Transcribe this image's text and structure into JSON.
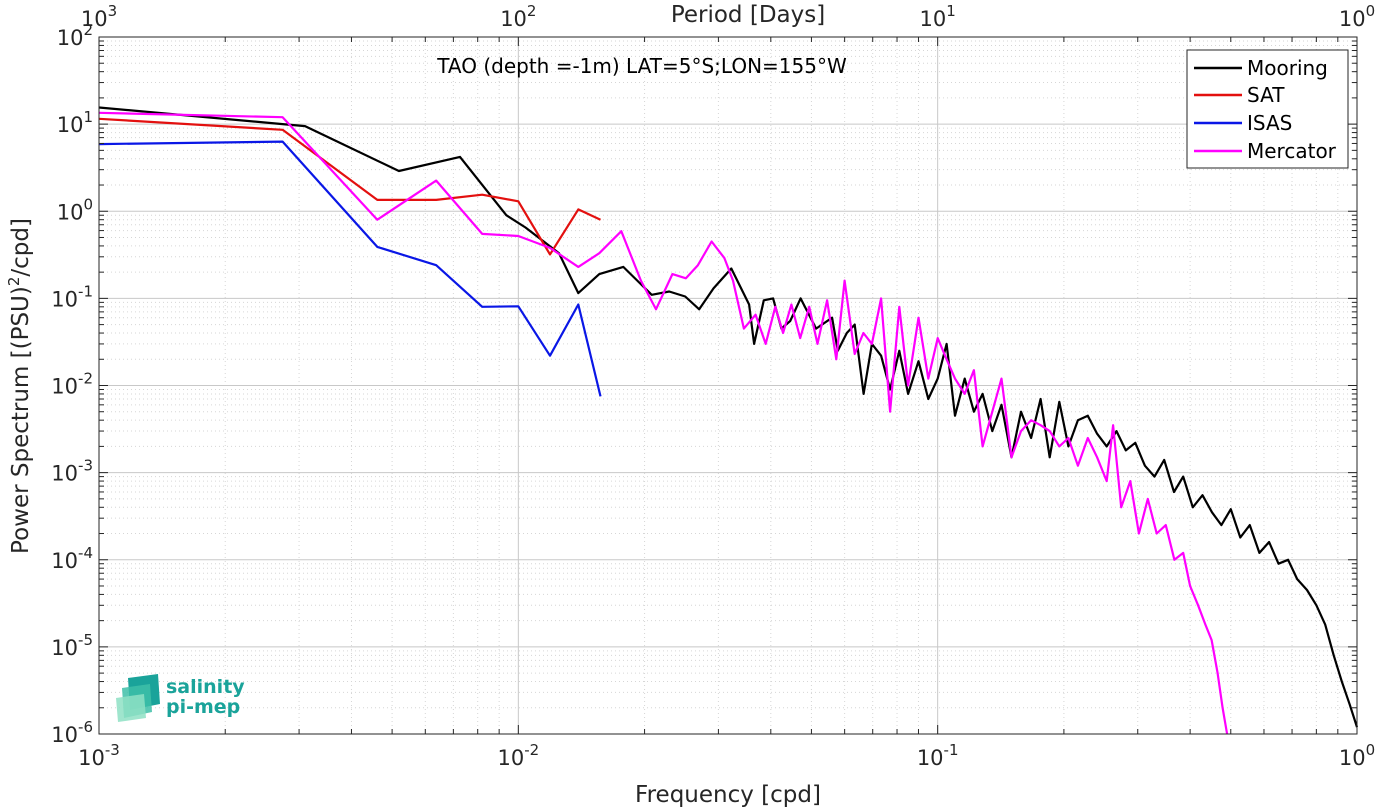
{
  "chart_data": {
    "type": "line",
    "title": "TAO (depth =-1m) LAT=5°S;LON=155°W",
    "xlabel": "Frequency [cpd]",
    "ylabel": "Power Spectrum [(PSU)²/cpd]",
    "ylabel_parts": {
      "pre": "Power Spectrum [(PSU)",
      "sup": "2",
      "post": "/cpd]"
    },
    "top_xlabel": "Period [Days]",
    "xscale": "log",
    "yscale": "log",
    "xlim": [
      0.001,
      1
    ],
    "ylim": [
      1e-06,
      100
    ],
    "grid": true,
    "legend_position": "top-right",
    "x_ticks": [
      {
        "value": 0.001,
        "base": "10",
        "exp": "-3"
      },
      {
        "value": 0.01,
        "base": "10",
        "exp": "-2"
      },
      {
        "value": 0.1,
        "base": "10",
        "exp": "-1"
      },
      {
        "value": 1,
        "base": "10",
        "exp": "0"
      }
    ],
    "top_ticks": [
      {
        "freq": 0.001,
        "base": "10",
        "exp": "3"
      },
      {
        "freq": 0.01,
        "base": "10",
        "exp": "2"
      },
      {
        "freq": 0.1,
        "base": "10",
        "exp": "1"
      },
      {
        "freq": 1,
        "base": "10",
        "exp": "0"
      }
    ],
    "y_ticks": [
      {
        "value": 100,
        "base": "10",
        "exp": "2"
      },
      {
        "value": 10,
        "base": "10",
        "exp": "1"
      },
      {
        "value": 1,
        "base": "10",
        "exp": "0"
      },
      {
        "value": 0.1,
        "base": "10",
        "exp": "-1"
      },
      {
        "value": 0.01,
        "base": "10",
        "exp": "-2"
      },
      {
        "value": 0.001,
        "base": "10",
        "exp": "-3"
      },
      {
        "value": 0.0001,
        "base": "10",
        "exp": "-4"
      },
      {
        "value": 1e-05,
        "base": "10",
        "exp": "-5"
      },
      {
        "value": 1e-06,
        "base": "10",
        "exp": "-6"
      }
    ],
    "series": [
      {
        "name": "Mooring",
        "color": "#000000",
        "x": [
          0.001,
          0.00274,
          0.0031,
          0.00519,
          0.00726,
          0.00936,
          0.0104,
          0.0125,
          0.0139,
          0.0156,
          0.0178,
          0.0208,
          0.0229,
          0.025,
          0.027,
          0.0292,
          0.0322,
          0.0355,
          0.0365,
          0.0385,
          0.0405,
          0.0424,
          0.0445,
          0.0471,
          0.0513,
          0.056,
          0.0578,
          0.0607,
          0.0634,
          0.0666,
          0.0697,
          0.0733,
          0.077,
          0.081,
          0.085,
          0.09,
          0.095,
          0.1,
          0.105,
          0.11,
          0.116,
          0.122,
          0.128,
          0.135,
          0.142,
          0.15,
          0.158,
          0.167,
          0.176,
          0.185,
          0.195,
          0.205,
          0.216,
          0.228,
          0.24,
          0.253,
          0.267,
          0.281,
          0.296,
          0.312,
          0.329,
          0.347,
          0.366,
          0.385,
          0.406,
          0.428,
          0.451,
          0.475,
          0.5,
          0.527,
          0.555,
          0.585,
          0.617,
          0.65,
          0.685,
          0.72,
          0.76,
          0.8,
          0.84,
          0.88,
          0.92,
          0.96,
          1.0
        ],
        "y": [
          15.5,
          10.0,
          9.5,
          2.9,
          4.2,
          0.9,
          0.65,
          0.33,
          0.115,
          0.19,
          0.23,
          0.11,
          0.12,
          0.105,
          0.075,
          0.13,
          0.22,
          0.085,
          0.03,
          0.095,
          0.1,
          0.045,
          0.055,
          0.1,
          0.045,
          0.06,
          0.025,
          0.04,
          0.05,
          0.008,
          0.03,
          0.022,
          0.009,
          0.025,
          0.008,
          0.019,
          0.007,
          0.012,
          0.03,
          0.0045,
          0.012,
          0.005,
          0.008,
          0.003,
          0.006,
          0.0015,
          0.005,
          0.0025,
          0.007,
          0.0015,
          0.0065,
          0.002,
          0.004,
          0.0045,
          0.0028,
          0.002,
          0.003,
          0.0018,
          0.0022,
          0.0012,
          0.0009,
          0.0014,
          0.0006,
          0.0009,
          0.0004,
          0.00055,
          0.00035,
          0.00025,
          0.00038,
          0.00018,
          0.00025,
          0.00012,
          0.00016,
          9e-05,
          0.0001,
          6e-05,
          4.5e-05,
          3e-05,
          1.8e-05,
          8e-06,
          4e-06,
          2.2e-06,
          1.2e-06
        ]
      },
      {
        "name": "SAT",
        "color": "#e3100f",
        "x": [
          0.001,
          0.00274,
          0.00461,
          0.00637,
          0.0082,
          0.01,
          0.0119,
          0.0139,
          0.0157
        ],
        "y": [
          11.5,
          8.6,
          1.35,
          1.35,
          1.55,
          1.3,
          0.32,
          1.05,
          0.8
        ]
      },
      {
        "name": "ISAS",
        "color": "#0a17e6",
        "x": [
          0.001,
          0.00274,
          0.00461,
          0.00637,
          0.0082,
          0.01,
          0.0119,
          0.0139,
          0.0157
        ],
        "y": [
          5.9,
          6.3,
          0.39,
          0.24,
          0.08,
          0.081,
          0.022,
          0.085,
          0.0075
        ]
      },
      {
        "name": "Mercator",
        "color": "#ff00ff",
        "x": [
          0.001,
          0.00274,
          0.00461,
          0.00637,
          0.0082,
          0.01,
          0.0119,
          0.0139,
          0.0156,
          0.0176,
          0.0196,
          0.0213,
          0.0233,
          0.0251,
          0.0268,
          0.0289,
          0.031,
          0.0325,
          0.0345,
          0.0368,
          0.0389,
          0.041,
          0.0428,
          0.0448,
          0.047,
          0.0494,
          0.0517,
          0.0545,
          0.0573,
          0.06,
          0.0634,
          0.0665,
          0.0697,
          0.0733,
          0.077,
          0.081,
          0.085,
          0.09,
          0.095,
          0.1,
          0.105,
          0.11,
          0.116,
          0.122,
          0.128,
          0.135,
          0.142,
          0.15,
          0.158,
          0.167,
          0.176,
          0.185,
          0.195,
          0.205,
          0.216,
          0.228,
          0.24,
          0.253,
          0.262,
          0.274,
          0.288,
          0.302,
          0.317,
          0.333,
          0.35,
          0.367,
          0.385,
          0.4,
          0.418,
          0.435,
          0.45,
          0.465,
          0.478,
          0.49
        ],
        "y": [
          13.5,
          12.0,
          0.8,
          2.25,
          0.55,
          0.52,
          0.38,
          0.23,
          0.33,
          0.59,
          0.16,
          0.075,
          0.19,
          0.17,
          0.24,
          0.45,
          0.29,
          0.16,
          0.045,
          0.065,
          0.03,
          0.08,
          0.04,
          0.085,
          0.035,
          0.08,
          0.03,
          0.095,
          0.02,
          0.16,
          0.023,
          0.04,
          0.03,
          0.1,
          0.005,
          0.08,
          0.01,
          0.06,
          0.012,
          0.035,
          0.02,
          0.012,
          0.008,
          0.015,
          0.002,
          0.005,
          0.012,
          0.0015,
          0.003,
          0.004,
          0.0035,
          0.003,
          0.002,
          0.0025,
          0.0012,
          0.0025,
          0.0015,
          0.0008,
          0.0035,
          0.0004,
          0.0008,
          0.0002,
          0.0005,
          0.0002,
          0.00025,
          0.0001,
          0.00012,
          5e-05,
          3e-05,
          1.8e-05,
          1.2e-05,
          5e-06,
          2e-06,
          9e-07
        ]
      }
    ]
  },
  "logo": {
    "line1": "salinity",
    "line2": "pi-mep"
  }
}
